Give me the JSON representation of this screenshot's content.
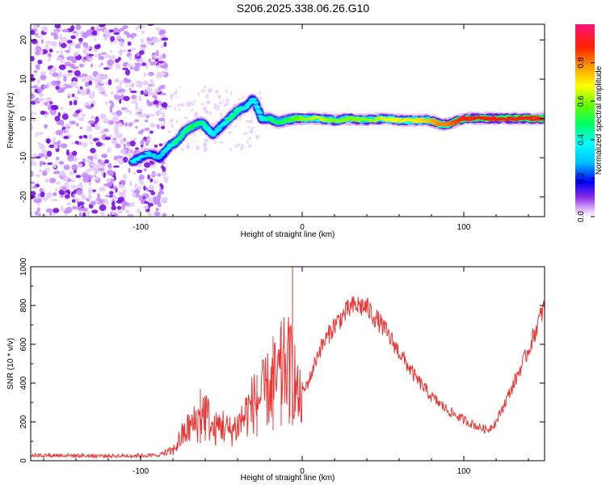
{
  "page": {
    "title": "S206.2025.338.06.26.G10"
  },
  "chart_data": [
    {
      "type": "heatmap",
      "xlabel": "Height of straight line (km)",
      "ylabel": "Frequency (Hz)",
      "xlim": [
        -168,
        150
      ],
      "ylim": [
        -25,
        24
      ],
      "xticks": [
        -100,
        0,
        100
      ],
      "yticks": [
        -20,
        -10,
        0,
        10,
        20
      ],
      "xtick_labels": [
        "-100",
        "0",
        "100"
      ],
      "ytick_labels": [
        "-20",
        "-10",
        "0",
        "10",
        "20"
      ],
      "grid": false,
      "noise_region_x": [
        -168,
        -84
      ],
      "ridge": {
        "x": [
          -105,
          -95,
          -88,
          -82,
          -78,
          -72,
          -68,
          -62,
          -58,
          -55,
          -50,
          -45,
          -40,
          -35,
          -30,
          -25,
          -20,
          -15,
          -10,
          -5,
          0,
          10,
          20,
          30,
          40,
          50,
          60,
          70,
          80,
          85,
          90,
          100,
          110,
          120,
          130,
          140,
          150
        ],
        "y": [
          -11,
          -9,
          -10,
          -7,
          -6,
          -3,
          -2,
          -1,
          -3,
          -4,
          -2,
          0,
          2,
          3,
          5,
          0,
          0,
          -1,
          -0.5,
          0,
          0,
          0,
          -0.5,
          0,
          -0.5,
          0,
          -0.5,
          -0.5,
          -0.5,
          -1.5,
          -1.5,
          0,
          0,
          0,
          0,
          0,
          0
        ],
        "amplitude": [
          0.4,
          0.35,
          0.3,
          0.4,
          0.45,
          0.45,
          0.5,
          0.45,
          0.4,
          0.35,
          0.35,
          0.45,
          0.45,
          0.4,
          0.35,
          0.4,
          0.45,
          0.5,
          0.5,
          0.55,
          0.6,
          0.65,
          0.6,
          0.6,
          0.6,
          0.65,
          0.7,
          0.7,
          0.75,
          0.8,
          0.8,
          0.9,
          0.9,
          0.9,
          0.9,
          0.9,
          0.9
        ]
      },
      "colorbar": {
        "label": "Normalized spectral amplitude",
        "range": [
          0,
          1
        ],
        "ticks": [
          0.0,
          0.2,
          0.4,
          0.6,
          0.8
        ],
        "tick_labels": [
          "0.0",
          "0.2",
          "0.4",
          "0.6",
          "0.8"
        ],
        "colormap": "hsv"
      }
    },
    {
      "type": "line",
      "xlabel": "Height of straight line (km)",
      "ylabel": "SNR (10 * v/v)",
      "xlim": [
        -168,
        150
      ],
      "ylim": [
        0,
        1000
      ],
      "xticks": [
        -100,
        0,
        100
      ],
      "yticks": [
        0,
        200,
        400,
        600,
        800,
        1000
      ],
      "xtick_labels": [
        "-100",
        "0",
        "100"
      ],
      "ytick_labels": [
        "0",
        "200",
        "400",
        "600",
        "800",
        "1000"
      ],
      "grid": false,
      "color": "#ee3333",
      "series": [
        {
          "x": [
            -168,
            -150,
            -130,
            -110,
            -90,
            -80,
            -75,
            -70,
            -65,
            -60,
            -55,
            -50,
            -45,
            -40,
            -35,
            -30,
            -25,
            -20,
            -15,
            -10,
            -5,
            -3,
            -1,
            0,
            5,
            10,
            20,
            30,
            35,
            40,
            50,
            60,
            70,
            80,
            90,
            100,
            110,
            115,
            120,
            130,
            140,
            150
          ],
          "y": [
            28,
            28,
            25,
            25,
            28,
            50,
            120,
            170,
            200,
            260,
            150,
            190,
            150,
            180,
            240,
            300,
            330,
            380,
            420,
            500,
            450,
            330,
            300,
            340,
            430,
            560,
            700,
            790,
            800,
            790,
            690,
            560,
            430,
            330,
            260,
            210,
            170,
            160,
            200,
            380,
            570,
            800
          ],
          "spikes": [
            {
              "x": -63,
              "y": 370
            },
            {
              "x": -60,
              "y": 290
            },
            {
              "x": -28,
              "y": 440
            },
            {
              "x": -18,
              "y": 640
            },
            {
              "x": -13,
              "y": 720
            },
            {
              "x": -8,
              "y": 690
            },
            {
              "x": -6,
              "y": 1000
            },
            {
              "x": -6,
              "y": 1000
            }
          ]
        }
      ]
    }
  ]
}
